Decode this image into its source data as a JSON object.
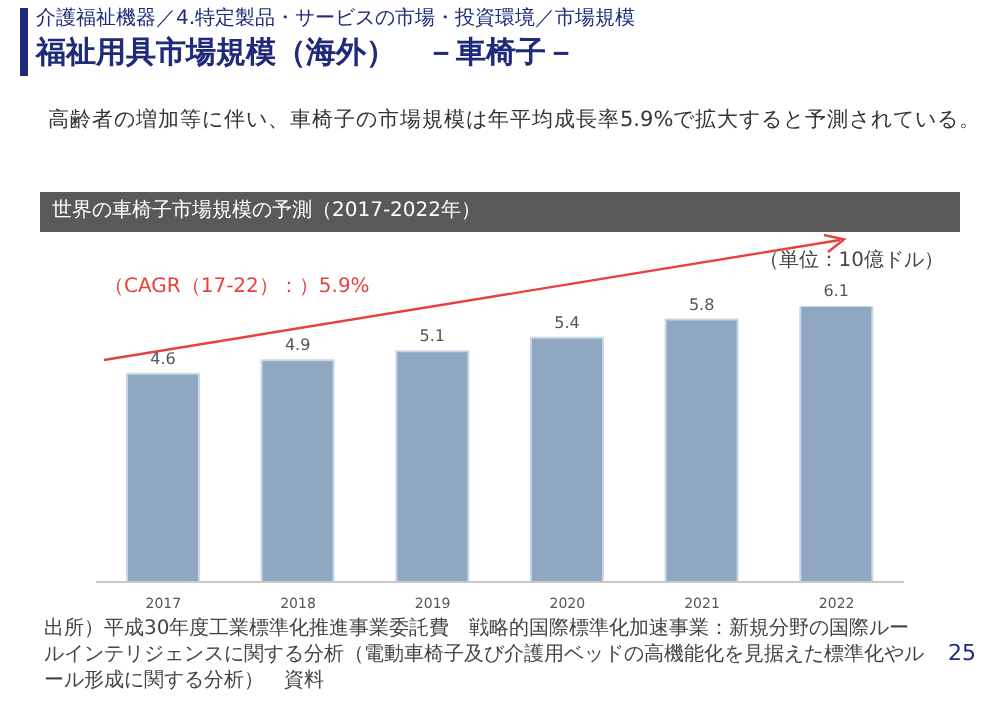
{
  "chart_data": {
    "type": "bar",
    "title": "世界の車椅子市場規模の予測（2017-2022年）",
    "subtitle": "高齢者の増加等に伴い、車椅子の市場規模は年平均成長率5.9%で拡大すると予測されている。",
    "annotations": [
      "介護福祉機器／4.特定製品・サービスの市場・投資環境／市場規模",
      "福祉用具市場規模（海外）　－車椅子－",
      "（単位：10億ドル）",
      "（CAGR（17-22）：）5.9%",
      "出所）平成30年度工業標準化推進事業委託費　戦略的国際標準化加速事業：新規分野の国際ルールインテリジェンスに関する分析（電動車椅子及び介護用ベッドの高機能化を見据えた標準化やルール形成に関する分析）　資料",
      "25"
    ],
    "categories": [
      "2017",
      "2018",
      "2019",
      "2020",
      "2021",
      "2022"
    ],
    "values": [
      4.6,
      4.9,
      5.1,
      5.4,
      5.8,
      6.1
    ],
    "color": "#8fa7c0",
    "tick_labels": "x",
    "data_labels": true
  }
}
